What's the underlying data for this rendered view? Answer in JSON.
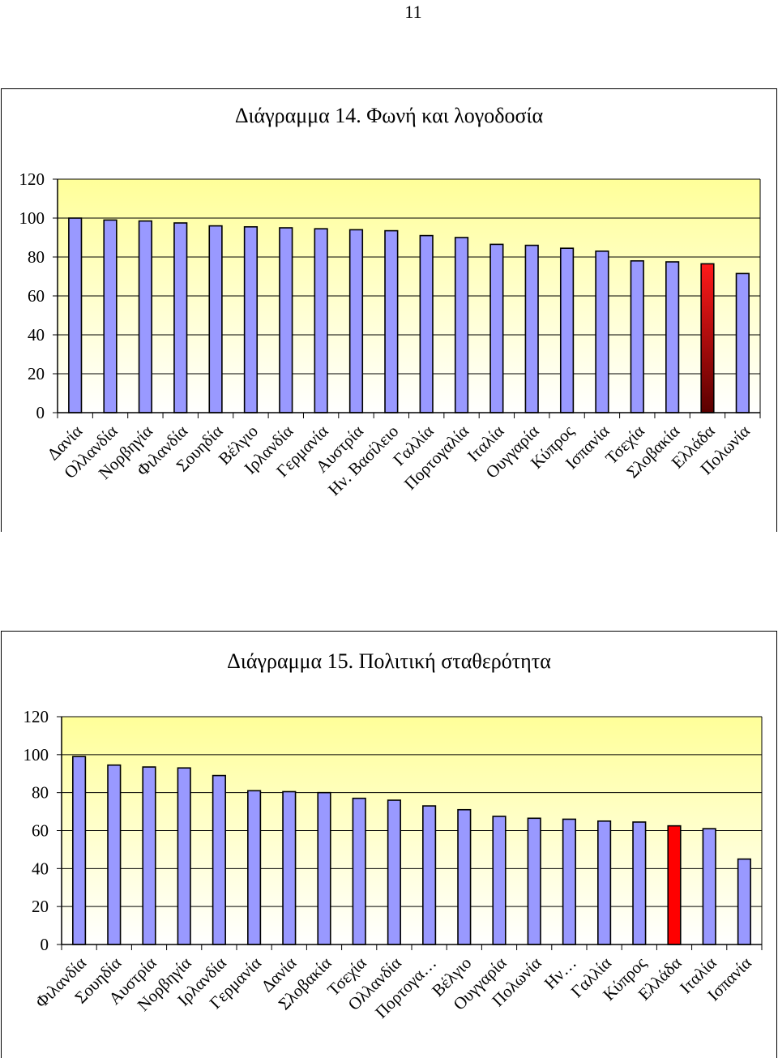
{
  "page_number": "11",
  "colors": {
    "bar": "#9999ff",
    "bar_highlight": "#ff0000",
    "plot_top": "#ffff99",
    "plot_bottom": "#ffffff",
    "grid": "#000000"
  },
  "chart_data": [
    {
      "type": "bar",
      "title": "Διάγραμμα 14. Φωνή και λογοδοσία",
      "xlabel": "",
      "ylabel": "",
      "ylim": [
        0,
        120
      ],
      "yticks": [
        "0",
        "20",
        "40",
        "60",
        "80",
        "100",
        "120"
      ],
      "grid": true,
      "highlight": "Ελλάδα",
      "highlight_style": "dark-red-gradient",
      "categories": [
        "Δανία",
        "Ολλανδία",
        "Νορβηγία",
        "Φιλανδία",
        "Σουηδία",
        "Βέλγιο",
        "Ιρλανδία",
        "Γερμανία",
        "Αυστρία",
        "Ην. Βασίλειο",
        "Γαλλία",
        "Πορτογαλία",
        "Ιταλία",
        "Ουγγαρία",
        "Κύπρος",
        "Ισπανία",
        "Τσεχία",
        "Σλοβακία",
        "Ελλάδα",
        "Πολωνία"
      ],
      "values": [
        100,
        99,
        98.5,
        97.5,
        96,
        95.5,
        95,
        94.5,
        94,
        93.5,
        91,
        90,
        86.5,
        86,
        84.5,
        83,
        78,
        77.5,
        76.5,
        71.5
      ]
    },
    {
      "type": "bar",
      "title": "Διάγραμμα 15. Πολιτική σταθερότητα",
      "xlabel": "",
      "ylabel": "",
      "ylim": [
        0,
        120
      ],
      "yticks": [
        "0",
        "20",
        "40",
        "60",
        "80",
        "100",
        "120"
      ],
      "grid": true,
      "highlight": "Ελλάδα",
      "highlight_style": "red",
      "categories": [
        "Φιλανδία",
        "Σουηδία",
        "Αυστρία",
        "Νορβηγία",
        "Ιρλανδία",
        "Γερμανία",
        "Δανία",
        "Σλοβακία",
        "Τσεχία",
        "Ολλανδία",
        "Πορτογα…",
        "Βέλγιο",
        "Ουγγαρία",
        "Πολωνία",
        "Ην…",
        "Γαλλία",
        "Κύπρος",
        "Ελλάδα",
        "Ιταλία",
        "Ισπανία"
      ],
      "values": [
        99,
        94.5,
        93.5,
        93,
        89,
        81,
        80.5,
        80,
        77,
        76,
        73,
        71,
        67.5,
        66.5,
        66,
        65,
        64.5,
        62.5,
        61,
        45
      ]
    }
  ]
}
